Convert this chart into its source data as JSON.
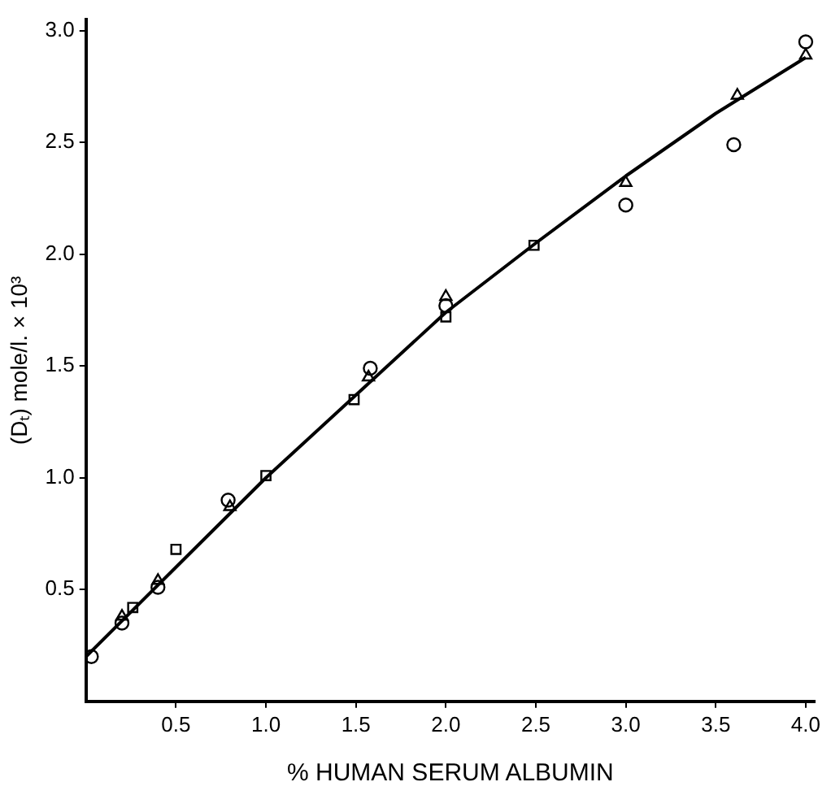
{
  "chart_data": {
    "type": "scatter",
    "xlabel": "% HUMAN SERUM ALBUMIN",
    "ylabel": "(Dₜ) mole/l. × 10³",
    "xlim": [
      0,
      4.05
    ],
    "ylim": [
      0,
      3.05
    ],
    "xticks": [
      0.5,
      {
        "value": 1,
        "label": "1.0"
      },
      1.5,
      {
        "value": 2,
        "label": "2.0"
      },
      2.5,
      {
        "value": 3,
        "label": "3.0"
      },
      3.5,
      {
        "value": 4,
        "label": "4.0"
      }
    ],
    "yticks": [
      0.5,
      {
        "value": 1,
        "label": "1.0"
      },
      1.5,
      {
        "value": 2,
        "label": "2.0"
      },
      2.5,
      {
        "value": 3,
        "label": "3.0"
      }
    ],
    "grid": false,
    "legend": false,
    "series": [
      {
        "color": "#000000",
        "marker": "circle",
        "x": [
          0.03,
          0.2,
          0.4,
          0.79,
          1.58,
          2.0,
          3.0,
          3.6,
          4.0
        ],
        "values": [
          0.2,
          0.35,
          0.51,
          0.9,
          1.49,
          1.77,
          2.22,
          2.49,
          2.95
        ]
      },
      {
        "color": "#000000",
        "marker": "triangle",
        "x": [
          0.2,
          0.4,
          0.8,
          1.57,
          2.0,
          3.0,
          3.62,
          4.0
        ],
        "values": [
          0.38,
          0.54,
          0.87,
          1.45,
          1.81,
          2.32,
          2.71,
          2.89
        ]
      },
      {
        "color": "#000000",
        "marker": "square",
        "x": [
          0.26,
          0.5,
          1.0,
          1.49,
          2.0,
          2.49
        ],
        "values": [
          0.42,
          0.68,
          1.01,
          1.35,
          1.72,
          2.04
        ]
      },
      {
        "type": "line",
        "color": "#000000",
        "marker": "none",
        "line_style": "solid",
        "x": [
          0,
          0.5,
          1.0,
          1.5,
          2.0,
          2.5,
          3.0,
          3.5,
          4.0
        ],
        "values": [
          0.2,
          0.6,
          1.0,
          1.37,
          1.74,
          2.05,
          2.35,
          2.63,
          2.88
        ]
      }
    ]
  }
}
